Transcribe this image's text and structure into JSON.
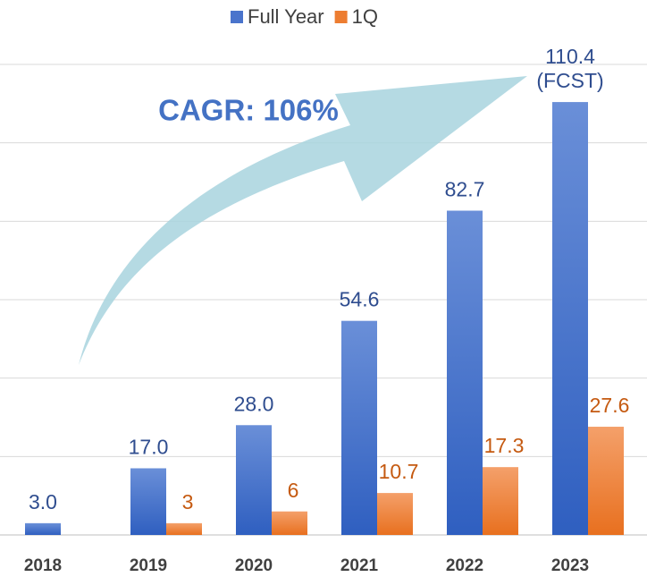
{
  "chart_data": {
    "type": "bar",
    "annotation": "CAGR: 106%",
    "categories": [
      "2018",
      "2019",
      "2020",
      "2021",
      "2022",
      "2023"
    ],
    "series": [
      {
        "name": "Full Year",
        "color": "#4a74cc",
        "values": [
          3.0,
          17.0,
          28.0,
          54.6,
          82.7,
          110.4
        ],
        "value_labels": [
          "3.0",
          "17.0",
          "28.0",
          "54.6",
          "82.7",
          "110.4\n(FCST)"
        ]
      },
      {
        "name": "1Q",
        "color": "#ed7d31",
        "values": [
          null,
          3,
          6,
          10.7,
          17.3,
          27.6
        ]
      }
    ],
    "ylim": [
      0,
      120
    ],
    "yticks": [
      0,
      20,
      40,
      60,
      80,
      100,
      120
    ],
    "grid": true,
    "legend": "top"
  }
}
